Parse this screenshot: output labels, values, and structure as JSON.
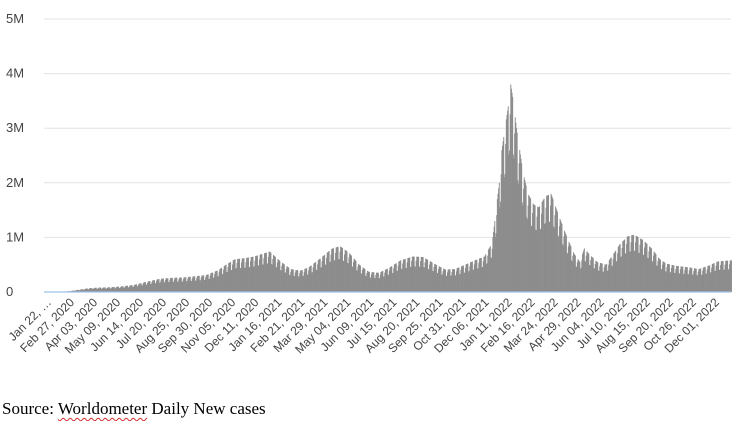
{
  "chart_data": {
    "type": "bar",
    "title": "",
    "xlabel": "",
    "ylabel": "",
    "ylim": [
      0,
      5000000
    ],
    "y_ticks": [
      {
        "value": 0,
        "label": "0"
      },
      {
        "value": 1000000,
        "label": "1M"
      },
      {
        "value": 2000000,
        "label": "2M"
      },
      {
        "value": 3000000,
        "label": "3M"
      },
      {
        "value": 4000000,
        "label": "4M"
      },
      {
        "value": 5000000,
        "label": "5M"
      }
    ],
    "x_start": "2020-01-22",
    "x_end": "2022-12-31",
    "x_tick_labels": [
      {
        "date": "2020-01-22",
        "label": "Jan 22, …"
      },
      {
        "date": "2020-02-27",
        "label": "Feb 27, 2020"
      },
      {
        "date": "2020-04-03",
        "label": "Apr 03, 2020"
      },
      {
        "date": "2020-05-09",
        "label": "May 09, 2020"
      },
      {
        "date": "2020-06-14",
        "label": "Jun 14, 2020"
      },
      {
        "date": "2020-07-20",
        "label": "Jul 20, 2020"
      },
      {
        "date": "2020-08-25",
        "label": "Aug 25, 2020"
      },
      {
        "date": "2020-09-30",
        "label": "Sep 30, 2020"
      },
      {
        "date": "2020-11-05",
        "label": "Nov 05, 2020"
      },
      {
        "date": "2020-12-11",
        "label": "Dec 11, 2020"
      },
      {
        "date": "2021-01-16",
        "label": "Jan 16, 2021"
      },
      {
        "date": "2021-02-21",
        "label": "Feb 21, 2021"
      },
      {
        "date": "2021-03-29",
        "label": "Mar 29, 2021"
      },
      {
        "date": "2021-05-04",
        "label": "May 04, 2021"
      },
      {
        "date": "2021-06-09",
        "label": "Jun 09, 2021"
      },
      {
        "date": "2021-07-15",
        "label": "Jul 15, 2021"
      },
      {
        "date": "2021-08-20",
        "label": "Aug 20, 2021"
      },
      {
        "date": "2021-09-25",
        "label": "Sep 25, 2021"
      },
      {
        "date": "2021-10-31",
        "label": "Oct 31, 2021"
      },
      {
        "date": "2021-12-06",
        "label": "Dec 06, 2021"
      },
      {
        "date": "2022-01-11",
        "label": "Jan 11, 2022"
      },
      {
        "date": "2022-02-16",
        "label": "Feb 16, 2022"
      },
      {
        "date": "2022-03-24",
        "label": "Mar 24, 2022"
      },
      {
        "date": "2022-04-29",
        "label": "Apr 29, 2022"
      },
      {
        "date": "2022-06-04",
        "label": "Jun 04, 2022"
      },
      {
        "date": "2022-07-10",
        "label": "Jul 10, 2022"
      },
      {
        "date": "2022-08-15",
        "label": "Aug 15, 2022"
      },
      {
        "date": "2022-09-20",
        "label": "Sep 20, 2022"
      },
      {
        "date": "2022-10-26",
        "label": "Oct 26, 2022"
      },
      {
        "date": "2022-12-01",
        "label": "Dec 01, 2022"
      }
    ],
    "series": [
      {
        "values": [
          {
            "date": "2020-01-22",
            "value": 600
          },
          {
            "date": "2020-02-15",
            "value": 3000
          },
          {
            "date": "2020-03-01",
            "value": 15000
          },
          {
            "date": "2020-03-15",
            "value": 40000
          },
          {
            "date": "2020-04-01",
            "value": 70000
          },
          {
            "date": "2020-04-15",
            "value": 80000
          },
          {
            "date": "2020-05-01",
            "value": 85000
          },
          {
            "date": "2020-05-20",
            "value": 100000
          },
          {
            "date": "2020-06-10",
            "value": 130000
          },
          {
            "date": "2020-07-01",
            "value": 190000
          },
          {
            "date": "2020-07-20",
            "value": 240000
          },
          {
            "date": "2020-08-10",
            "value": 260000
          },
          {
            "date": "2020-08-25",
            "value": 265000
          },
          {
            "date": "2020-09-15",
            "value": 290000
          },
          {
            "date": "2020-10-01",
            "value": 310000
          },
          {
            "date": "2020-10-20",
            "value": 400000
          },
          {
            "date": "2020-11-01",
            "value": 500000
          },
          {
            "date": "2020-11-15",
            "value": 600000
          },
          {
            "date": "2020-12-01",
            "value": 620000
          },
          {
            "date": "2020-12-15",
            "value": 650000
          },
          {
            "date": "2021-01-08",
            "value": 740000
          },
          {
            "date": "2021-01-25",
            "value": 560000
          },
          {
            "date": "2021-02-10",
            "value": 420000
          },
          {
            "date": "2021-02-25",
            "value": 390000
          },
          {
            "date": "2021-03-10",
            "value": 450000
          },
          {
            "date": "2021-03-29",
            "value": 620000
          },
          {
            "date": "2021-04-15",
            "value": 790000
          },
          {
            "date": "2021-04-28",
            "value": 840000
          },
          {
            "date": "2021-05-12",
            "value": 720000
          },
          {
            "date": "2021-05-28",
            "value": 500000
          },
          {
            "date": "2021-06-12",
            "value": 370000
          },
          {
            "date": "2021-06-28",
            "value": 350000
          },
          {
            "date": "2021-07-15",
            "value": 450000
          },
          {
            "date": "2021-08-01",
            "value": 580000
          },
          {
            "date": "2021-08-20",
            "value": 650000
          },
          {
            "date": "2021-09-05",
            "value": 640000
          },
          {
            "date": "2021-09-25",
            "value": 500000
          },
          {
            "date": "2021-10-10",
            "value": 410000
          },
          {
            "date": "2021-10-25",
            "value": 420000
          },
          {
            "date": "2021-11-10",
            "value": 500000
          },
          {
            "date": "2021-11-25",
            "value": 580000
          },
          {
            "date": "2021-12-10",
            "value": 650000
          },
          {
            "date": "2021-12-22",
            "value": 900000
          },
          {
            "date": "2021-12-28",
            "value": 1500000
          },
          {
            "date": "2022-01-02",
            "value": 2000000
          },
          {
            "date": "2022-01-06",
            "value": 2600000
          },
          {
            "date": "2022-01-11",
            "value": 3000000
          },
          {
            "date": "2022-01-16",
            "value": 3400000
          },
          {
            "date": "2022-01-20",
            "value": 3800000
          },
          {
            "date": "2022-01-24",
            "value": 3500000
          },
          {
            "date": "2022-01-29",
            "value": 3000000
          },
          {
            "date": "2022-02-03",
            "value": 2600000
          },
          {
            "date": "2022-02-08",
            "value": 2200000
          },
          {
            "date": "2022-02-16",
            "value": 1800000
          },
          {
            "date": "2022-02-25",
            "value": 1600000
          },
          {
            "date": "2022-03-05",
            "value": 1550000
          },
          {
            "date": "2022-03-15",
            "value": 1750000
          },
          {
            "date": "2022-03-24",
            "value": 1800000
          },
          {
            "date": "2022-04-05",
            "value": 1400000
          },
          {
            "date": "2022-04-18",
            "value": 1000000
          },
          {
            "date": "2022-04-29",
            "value": 700000
          },
          {
            "date": "2022-05-08",
            "value": 550000
          },
          {
            "date": "2022-05-15",
            "value": 800000
          },
          {
            "date": "2022-05-22",
            "value": 700000
          },
          {
            "date": "2022-06-04",
            "value": 550000
          },
          {
            "date": "2022-06-18",
            "value": 500000
          },
          {
            "date": "2022-07-01",
            "value": 720000
          },
          {
            "date": "2022-07-10",
            "value": 880000
          },
          {
            "date": "2022-07-22",
            "value": 1020000
          },
          {
            "date": "2022-08-01",
            "value": 1050000
          },
          {
            "date": "2022-08-15",
            "value": 950000
          },
          {
            "date": "2022-08-28",
            "value": 800000
          },
          {
            "date": "2022-09-10",
            "value": 600000
          },
          {
            "date": "2022-09-20",
            "value": 520000
          },
          {
            "date": "2022-10-05",
            "value": 480000
          },
          {
            "date": "2022-10-26",
            "value": 450000
          },
          {
            "date": "2022-11-10",
            "value": 420000
          },
          {
            "date": "2022-11-25",
            "value": 480000
          },
          {
            "date": "2022-12-10",
            "value": 560000
          },
          {
            "date": "2022-12-31",
            "value": 580000
          }
        ]
      }
    ],
    "grid": true,
    "colors": {
      "bar": "#8c8c8c",
      "grid": "#e3e3e3",
      "baseline": "#9ec4e8",
      "text": "#444444"
    }
  },
  "caption": {
    "prefix": "Source: ",
    "source_name": "Worldometer",
    "suffix": " Daily New cases"
  }
}
